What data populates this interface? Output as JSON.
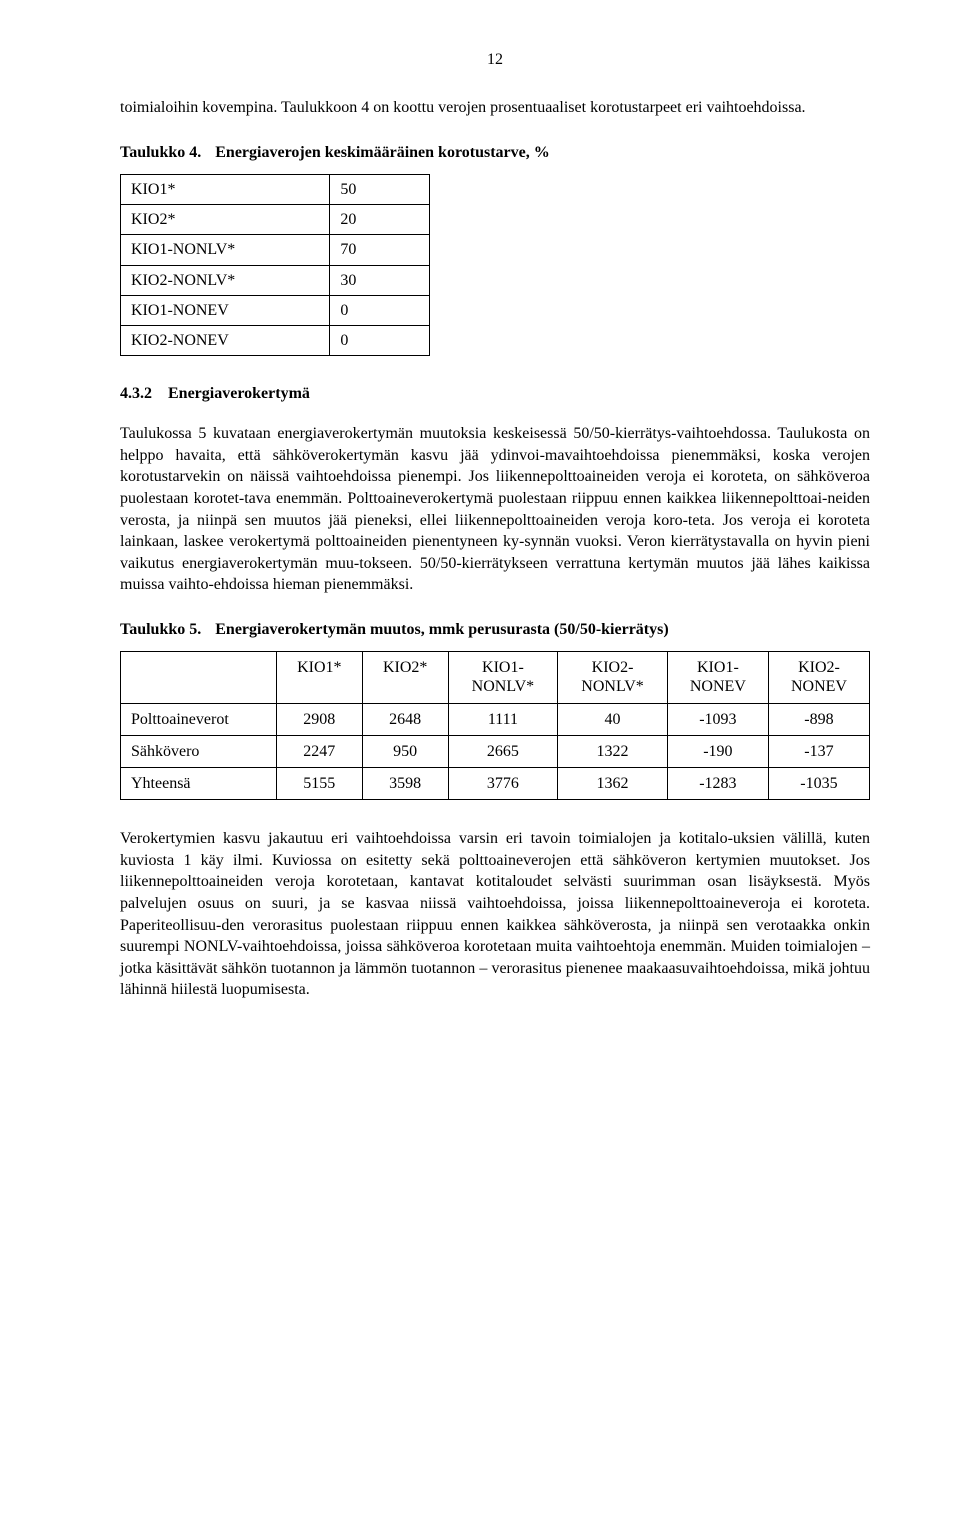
{
  "page_number": "12",
  "paragraphs": {
    "p1": "toimialoihin kovempina. Taulukkoon 4 on koottu verojen prosentuaaliset korotustarpeet eri vaihtoehdoissa.",
    "p2": "Taulukossa 5 kuvataan energiaverokertymän muutoksia keskeisessä 50/50-kierrätys-vaihtoehdossa. Taulukosta on helppo havaita, että sähköverokertymän kasvu jää ydinvoi-mavaihtoehdoissa pienemmäksi, koska verojen korotustarvekin on näissä vaihtoehdoissa pienempi. Jos liikennepolttoaineiden veroja ei koroteta, on sähköveroa puolestaan korotet-tava enemmän. Polttoaineverokertymä puolestaan riippuu ennen kaikkea liikennepolttoai-neiden verosta, ja niinpä sen muutos jää pieneksi, ellei liikennepolttoaineiden veroja koro-teta. Jos veroja ei koroteta lainkaan, laskee verokertymä polttoaineiden pienentyneen ky-synnän vuoksi. Veron kierrätystavalla on hyvin pieni vaikutus energiaverokertymän muu-tokseen. 50/50-kierrätykseen verrattuna kertymän muutos jää lähes kaikissa muissa vaihto-ehdoissa hieman pienemmäksi.",
    "p3": "Verokertymien kasvu jakautuu eri vaihtoehdoissa varsin eri tavoin toimialojen ja kotitalo-uksien välillä, kuten kuviosta 1 käy ilmi. Kuviossa on esitetty sekä polttoaineverojen että sähköveron kertymien muutokset. Jos liikennepolttoaineiden veroja korotetaan, kantavat kotitaloudet selvästi suurimman osan lisäyksestä. Myös palvelujen osuus on suuri, ja se kasvaa niissä vaihtoehdoissa, joissa liikennepolttoaineveroja ei koroteta. Paperiteollisuu-den verorasitus puolestaan riippuu ennen kaikkea sähköverosta, ja niinpä sen verotaakka onkin suurempi NONLV-vaihtoehdoissa, joissa sähköveroa korotetaan muita vaihtoehtoja enemmän. Muiden toimialojen – jotka käsittävät sähkön tuotannon ja lämmön tuotannon – verorasitus pienenee maakaasuvaihtoehdoissa, mikä johtuu lähinnä hiilestä luopumisesta."
  },
  "table4": {
    "caption_label": "Taulukko 4.",
    "caption_title": "Energiaverojen keskimääräinen korotustarve, %",
    "rows": [
      {
        "label": "KIO1*",
        "value": "50"
      },
      {
        "label": "KIO2*",
        "value": "20"
      },
      {
        "label": "KIO1-NONLV*",
        "value": "70"
      },
      {
        "label": "KIO2-NONLV*",
        "value": "30"
      },
      {
        "label": "KIO1-NONEV",
        "value": "0"
      },
      {
        "label": "KIO2-NONEV",
        "value": "0"
      }
    ]
  },
  "subheading": {
    "number": "4.3.2",
    "title": "Energiaverokertymä"
  },
  "table5": {
    "caption_label": "Taulukko 5.",
    "caption_title": "Energiaverokertymän muutos, mmk perusurasta (50/50-kierrätys)",
    "headers": [
      "",
      "KIO1*",
      "KIO2*",
      "KIO1-NONLV*",
      "KIO2-NONLV*",
      "KIO1-NONEV",
      "KIO2-NONEV"
    ],
    "rows": [
      {
        "label": "Polttoaineverot",
        "values": [
          "2908",
          "2648",
          "1111",
          "40",
          "-1093",
          "-898"
        ]
      },
      {
        "label": "Sähkövero",
        "values": [
          "2247",
          "950",
          "2665",
          "1322",
          "-190",
          "-137"
        ]
      },
      {
        "label": "Yhteensä",
        "values": [
          "5155",
          "3598",
          "3776",
          "1362",
          "-1283",
          "-1035"
        ]
      }
    ]
  }
}
